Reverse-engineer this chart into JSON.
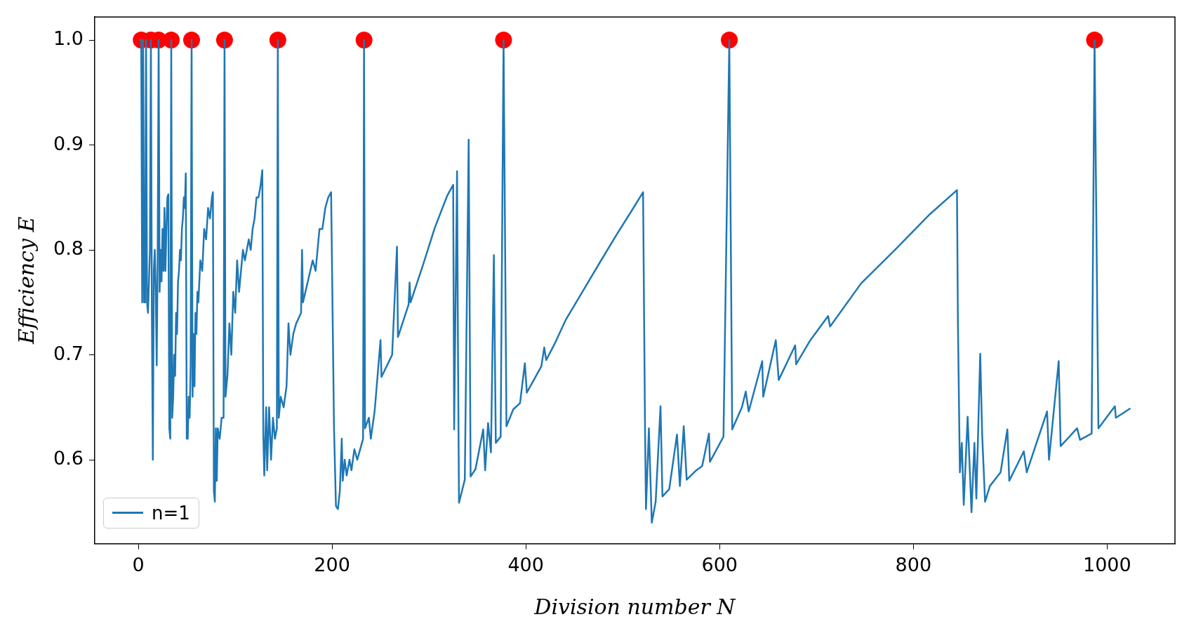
{
  "chart_data": {
    "type": "line",
    "xlabel": "Division number N",
    "ylabel": "Efficiency E",
    "xlim": [
      -45,
      1070
    ],
    "ylim": [
      0.52,
      1.022
    ],
    "xticks": [
      0,
      200,
      400,
      600,
      800,
      1000
    ],
    "yticks": [
      0.6,
      0.7,
      0.8,
      0.9,
      {
        "value": 1,
        "label": "1.0"
      }
    ],
    "grid": false,
    "legend": "bottom left",
    "series": [
      {
        "name": "n=1",
        "color": "#1f77b4",
        "marker": "none",
        "x": [
          1,
          2,
          3,
          4,
          5,
          6,
          7,
          8,
          9,
          10,
          11,
          12,
          13,
          14,
          15,
          16,
          17,
          18,
          19,
          20,
          21,
          22,
          23,
          24,
          25,
          26,
          27,
          28,
          29,
          30,
          31,
          32,
          33,
          34,
          35,
          36,
          37,
          38,
          39,
          40,
          41,
          42,
          43,
          44,
          45,
          46,
          47,
          48,
          49,
          50,
          51,
          52,
          53,
          54,
          55,
          56,
          57,
          58,
          59,
          60,
          61,
          62,
          64,
          66,
          68,
          70,
          72,
          74,
          76,
          77,
          78,
          79,
          80,
          81,
          82,
          84,
          86,
          88,
          89,
          90,
          92,
          94,
          96,
          98,
          100,
          102,
          104,
          106,
          108,
          110,
          114,
          116,
          118,
          120,
          122,
          124,
          126,
          128,
          129,
          130,
          132,
          133,
          135,
          137,
          139,
          141,
          143,
          144,
          145,
          147,
          150,
          153,
          155,
          157,
          160,
          163,
          168,
          169,
          170,
          175,
          180,
          183,
          187,
          190,
          193,
          196,
          199,
          202,
          204,
          206,
          208,
          210,
          211,
          213,
          215,
          218,
          220,
          223,
          226,
          229,
          232,
          233,
          234,
          238,
          240,
          244,
          250,
          251,
          262,
          267,
          268,
          279,
          280,
          281,
          294,
          306,
          319,
          325,
          326,
          329,
          330,
          331,
          337,
          341,
          343,
          348,
          356,
          358,
          361,
          364,
          367,
          369,
          374,
          377,
          380,
          387,
          394,
          399,
          401,
          416,
          419,
          421,
          430,
          441,
          459,
          477,
          494,
          509,
          521,
          523,
          524,
          527,
          530,
          534,
          539,
          541,
          548,
          556,
          559,
          563,
          566,
          576,
          582,
          589,
          590,
          604,
          610,
          613,
          623,
          627,
          630,
          644,
          645,
          658,
          661,
          678,
          679,
          693,
          712,
          714,
          746,
          782,
          817,
          845,
          846,
          848,
          850,
          852,
          856,
          860,
          863,
          865,
          869,
          871,
          874,
          879,
          890,
          897,
          899,
          914,
          917,
          938,
          940,
          950,
          952,
          969,
          972,
          984,
          987,
          991,
          1008,
          1009,
          1024
        ],
        "values": [
          1,
          1,
          1,
          0.75,
          1,
          0.75,
          0.75,
          1,
          0.75,
          0.74,
          0.77,
          0.8,
          1,
          0.74,
          0.6,
          0.78,
          0.8,
          0.76,
          0.69,
          0.8,
          1,
          0.76,
          0.8,
          0.77,
          0.82,
          0.78,
          0.84,
          0.78,
          0.82,
          0.85,
          0.853,
          0.63,
          0.62,
          1,
          0.64,
          0.66,
          0.7,
          0.68,
          0.74,
          0.72,
          0.77,
          0.78,
          0.8,
          0.79,
          0.82,
          0.83,
          0.85,
          0.84,
          0.873,
          0.62,
          0.62,
          0.66,
          0.64,
          0.69,
          1,
          0.66,
          0.72,
          0.67,
          0.74,
          0.72,
          0.76,
          0.75,
          0.79,
          0.78,
          0.82,
          0.81,
          0.84,
          0.83,
          0.85,
          0.855,
          0.57,
          0.56,
          0.63,
          0.58,
          0.63,
          0.62,
          0.64,
          0.64,
          1,
          0.66,
          0.68,
          0.73,
          0.7,
          0.76,
          0.74,
          0.79,
          0.76,
          0.78,
          0.8,
          0.79,
          0.81,
          0.8,
          0.82,
          0.83,
          0.85,
          0.85,
          0.86,
          0.876,
          0.625,
          0.585,
          0.65,
          0.59,
          0.65,
          0.6,
          0.64,
          0.62,
          0.63,
          1,
          0.64,
          0.66,
          0.65,
          0.67,
          0.73,
          0.7,
          0.72,
          0.73,
          0.74,
          0.8,
          0.75,
          0.77,
          0.79,
          0.78,
          0.82,
          0.82,
          0.84,
          0.85,
          0.855,
          0.63,
          0.556,
          0.553,
          0.57,
          0.62,
          0.58,
          0.6,
          0.585,
          0.6,
          0.59,
          0.61,
          0.6,
          0.61,
          0.62,
          1,
          0.63,
          0.64,
          0.62,
          0.647,
          0.714,
          0.679,
          0.7,
          0.803,
          0.717,
          0.748,
          0.769,
          0.75,
          0.786,
          0.821,
          0.852,
          0.862,
          0.629,
          0.875,
          0.698,
          0.559,
          0.581,
          0.905,
          0.584,
          0.591,
          0.629,
          0.59,
          0.635,
          0.607,
          0.795,
          0.616,
          0.622,
          1,
          0.632,
          0.648,
          0.654,
          0.692,
          0.664,
          0.689,
          0.707,
          0.695,
          0.711,
          0.733,
          0.761,
          0.789,
          0.815,
          0.837,
          0.855,
          0.632,
          0.553,
          0.63,
          0.54,
          0.56,
          0.651,
          0.565,
          0.572,
          0.624,
          0.575,
          0.632,
          0.581,
          0.59,
          0.594,
          0.625,
          0.598,
          0.622,
          1,
          0.629,
          0.65,
          0.665,
          0.646,
          0.694,
          0.66,
          0.714,
          0.676,
          0.709,
          0.691,
          0.713,
          0.737,
          0.727,
          0.768,
          0.801,
          0.834,
          0.857,
          0.729,
          0.588,
          0.616,
          0.557,
          0.641,
          0.55,
          0.616,
          0.563,
          0.701,
          0.624,
          0.56,
          0.575,
          0.588,
          0.629,
          0.58,
          0.608,
          0.588,
          0.646,
          0.6,
          0.694,
          0.613,
          0.63,
          0.619,
          0.625,
          1,
          0.63,
          0.651,
          0.64,
          0.649
        ]
      },
      {
        "type": "scatter",
        "color": "#ff0000",
        "marker": "circle",
        "x": [
          3,
          13,
          21,
          34,
          55,
          89,
          144,
          233,
          377,
          610,
          987
        ],
        "values": [
          1,
          1,
          1,
          1,
          1,
          1,
          1,
          1,
          1,
          1,
          1
        ]
      }
    ]
  }
}
